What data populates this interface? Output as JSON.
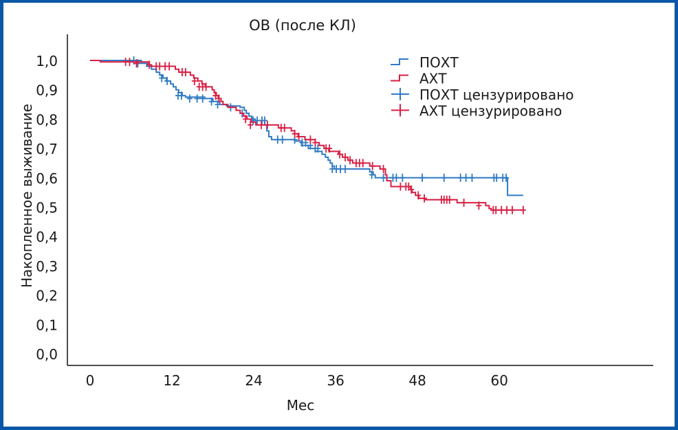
{
  "chart_data": {
    "type": "line",
    "subtype": "kaplan-meier-step",
    "title": "ОВ (после КЛ)",
    "xlabel": "Мес",
    "ylabel": "Накопленное выживание",
    "xlim": [
      -3,
      82
    ],
    "ylim": [
      0,
      1.0
    ],
    "xticks": [
      0,
      12,
      24,
      36,
      48,
      60
    ],
    "xtick_labels": [
      "0",
      "12",
      "24",
      "36",
      "48",
      "60"
    ],
    "yticks": [
      0.0,
      0.1,
      0.2,
      0.3,
      0.4,
      0.5,
      0.6,
      0.7,
      0.8,
      0.9,
      1.0
    ],
    "ytick_labels": [
      "0,0",
      "0,1",
      "0,2",
      "0,3",
      "0,4",
      "0,5",
      "0,6",
      "0,7",
      "0,8",
      "0,9",
      "1,0"
    ],
    "grid": false,
    "legend_position": "top-right",
    "legend": [
      {
        "label": "ПОХТ",
        "kind": "step",
        "series": "poxt"
      },
      {
        "label": "АХТ",
        "kind": "step",
        "series": "axt"
      },
      {
        "label": "ПОХТ цензурировано",
        "kind": "censor",
        "series": "poxt"
      },
      {
        "label": "АХТ цензурировано",
        "kind": "censor",
        "series": "axt"
      }
    ],
    "series": [
      {
        "id": "poxt",
        "name": "ПОХТ",
        "color": "#2f7bc4",
        "steps": [
          [
            0,
            1.0
          ],
          [
            7.5,
            0.99
          ],
          [
            8.3,
            0.98
          ],
          [
            9.0,
            0.97
          ],
          [
            9.7,
            0.96
          ],
          [
            10.2,
            0.95
          ],
          [
            10.7,
            0.94
          ],
          [
            11.2,
            0.93
          ],
          [
            11.8,
            0.92
          ],
          [
            12.2,
            0.91
          ],
          [
            12.6,
            0.9
          ],
          [
            13.0,
            0.89
          ],
          [
            13.5,
            0.88
          ],
          [
            14.0,
            0.875
          ],
          [
            16.8,
            0.87
          ],
          [
            18.0,
            0.86
          ],
          [
            19.0,
            0.85
          ],
          [
            20.0,
            0.845
          ],
          [
            22.0,
            0.84
          ],
          [
            22.6,
            0.83
          ],
          [
            22.9,
            0.82
          ],
          [
            23.3,
            0.81
          ],
          [
            23.7,
            0.8
          ],
          [
            24.2,
            0.795
          ],
          [
            25.6,
            0.78
          ],
          [
            25.9,
            0.76
          ],
          [
            26.2,
            0.74
          ],
          [
            26.6,
            0.73
          ],
          [
            30.0,
            0.725
          ],
          [
            31.0,
            0.71
          ],
          [
            32.0,
            0.7
          ],
          [
            33.0,
            0.69
          ],
          [
            34.0,
            0.68
          ],
          [
            34.5,
            0.67
          ],
          [
            34.9,
            0.66
          ],
          [
            35.2,
            0.65
          ],
          [
            35.5,
            0.64
          ],
          [
            35.8,
            0.63
          ],
          [
            41.0,
            0.62
          ],
          [
            41.5,
            0.61
          ],
          [
            41.8,
            0.6
          ],
          [
            61.2,
            0.54
          ],
          [
            63.5,
            0.54
          ]
        ],
        "censored": [
          [
            6.4,
            1.0
          ],
          [
            7.0,
            0.99
          ],
          [
            10.5,
            0.94
          ],
          [
            11.3,
            0.93
          ],
          [
            12.9,
            0.88
          ],
          [
            13.4,
            0.88
          ],
          [
            14.6,
            0.87
          ],
          [
            15.7,
            0.87
          ],
          [
            16.5,
            0.87
          ],
          [
            17.8,
            0.86
          ],
          [
            18.7,
            0.85
          ],
          [
            20.6,
            0.84
          ],
          [
            22.3,
            0.82
          ],
          [
            23.9,
            0.795
          ],
          [
            24.5,
            0.795
          ],
          [
            25.2,
            0.795
          ],
          [
            25.6,
            0.795
          ],
          [
            27.5,
            0.73
          ],
          [
            28.2,
            0.73
          ],
          [
            30.0,
            0.73
          ],
          [
            31.1,
            0.72
          ],
          [
            31.6,
            0.72
          ],
          [
            32.3,
            0.71
          ],
          [
            33.0,
            0.7
          ],
          [
            33.4,
            0.7
          ],
          [
            35.5,
            0.63
          ],
          [
            36.1,
            0.63
          ],
          [
            36.7,
            0.63
          ],
          [
            37.4,
            0.63
          ],
          [
            41.3,
            0.61
          ],
          [
            43.0,
            0.6
          ],
          [
            44.4,
            0.6
          ],
          [
            44.9,
            0.6
          ],
          [
            45.8,
            0.6
          ],
          [
            48.7,
            0.6
          ],
          [
            51.9,
            0.6
          ],
          [
            54.3,
            0.6
          ],
          [
            55.1,
            0.6
          ],
          [
            56.0,
            0.6
          ],
          [
            59.2,
            0.6
          ],
          [
            59.6,
            0.6
          ],
          [
            60.5,
            0.6
          ],
          [
            61.0,
            0.6
          ]
        ]
      },
      {
        "id": "axt",
        "name": "АХТ",
        "color": "#d81e43",
        "steps": [
          [
            0,
            1.0
          ],
          [
            1.5,
            0.995
          ],
          [
            8.5,
            0.985
          ],
          [
            9.0,
            0.98
          ],
          [
            12.5,
            0.97
          ],
          [
            13.0,
            0.96
          ],
          [
            14.7,
            0.95
          ],
          [
            15.2,
            0.94
          ],
          [
            15.8,
            0.93
          ],
          [
            16.4,
            0.92
          ],
          [
            16.9,
            0.91
          ],
          [
            17.9,
            0.9
          ],
          [
            18.2,
            0.89
          ],
          [
            18.5,
            0.88
          ],
          [
            18.8,
            0.87
          ],
          [
            19.2,
            0.86
          ],
          [
            19.5,
            0.85
          ],
          [
            20.2,
            0.84
          ],
          [
            21.4,
            0.83
          ],
          [
            22.0,
            0.82
          ],
          [
            22.5,
            0.81
          ],
          [
            23.0,
            0.8
          ],
          [
            23.6,
            0.79
          ],
          [
            24.3,
            0.78
          ],
          [
            27.6,
            0.77
          ],
          [
            29.5,
            0.76
          ],
          [
            30.0,
            0.75
          ],
          [
            30.5,
            0.74
          ],
          [
            31.5,
            0.73
          ],
          [
            33.0,
            0.72
          ],
          [
            33.6,
            0.71
          ],
          [
            34.3,
            0.7
          ],
          [
            35.0,
            0.69
          ],
          [
            36.4,
            0.68
          ],
          [
            37.0,
            0.67
          ],
          [
            37.8,
            0.66
          ],
          [
            38.5,
            0.65
          ],
          [
            41.0,
            0.64
          ],
          [
            42.5,
            0.63
          ],
          [
            43.3,
            0.61
          ],
          [
            43.5,
            0.59
          ],
          [
            44.1,
            0.57
          ],
          [
            47.0,
            0.56
          ],
          [
            47.2,
            0.55
          ],
          [
            47.7,
            0.54
          ],
          [
            48.2,
            0.53
          ],
          [
            49.0,
            0.525
          ],
          [
            53.8,
            0.515
          ],
          [
            58.0,
            0.505
          ],
          [
            58.5,
            0.495
          ],
          [
            58.8,
            0.49
          ],
          [
            63.5,
            0.49
          ]
        ],
        "censored": [
          [
            5.2,
            0.995
          ],
          [
            5.8,
            0.995
          ],
          [
            6.8,
            0.99
          ],
          [
            8.7,
            0.985
          ],
          [
            9.7,
            0.98
          ],
          [
            10.2,
            0.98
          ],
          [
            11.0,
            0.98
          ],
          [
            11.6,
            0.98
          ],
          [
            13.5,
            0.96
          ],
          [
            14.0,
            0.96
          ],
          [
            15.3,
            0.93
          ],
          [
            16.0,
            0.91
          ],
          [
            16.5,
            0.91
          ],
          [
            17.0,
            0.91
          ],
          [
            18.4,
            0.88
          ],
          [
            18.9,
            0.87
          ],
          [
            22.8,
            0.8
          ],
          [
            23.5,
            0.78
          ],
          [
            25.1,
            0.78
          ],
          [
            26.0,
            0.78
          ],
          [
            28.0,
            0.77
          ],
          [
            28.5,
            0.77
          ],
          [
            30.0,
            0.75
          ],
          [
            30.6,
            0.74
          ],
          [
            32.3,
            0.73
          ],
          [
            33.0,
            0.72
          ],
          [
            34.6,
            0.7
          ],
          [
            35.1,
            0.7
          ],
          [
            36.6,
            0.68
          ],
          [
            37.4,
            0.67
          ],
          [
            38.1,
            0.66
          ],
          [
            39.0,
            0.65
          ],
          [
            39.5,
            0.65
          ],
          [
            40.0,
            0.65
          ],
          [
            41.4,
            0.64
          ],
          [
            43.0,
            0.63
          ],
          [
            45.5,
            0.57
          ],
          [
            46.3,
            0.57
          ],
          [
            46.7,
            0.57
          ],
          [
            47.1,
            0.56
          ],
          [
            48.1,
            0.54
          ],
          [
            49.0,
            0.53
          ],
          [
            51.5,
            0.525
          ],
          [
            51.9,
            0.525
          ],
          [
            52.3,
            0.525
          ],
          [
            52.7,
            0.525
          ],
          [
            54.8,
            0.515
          ],
          [
            57.0,
            0.505
          ],
          [
            59.1,
            0.49
          ],
          [
            59.5,
            0.49
          ],
          [
            60.3,
            0.49
          ],
          [
            61.1,
            0.49
          ],
          [
            61.9,
            0.49
          ],
          [
            63.5,
            0.49
          ]
        ]
      }
    ]
  }
}
